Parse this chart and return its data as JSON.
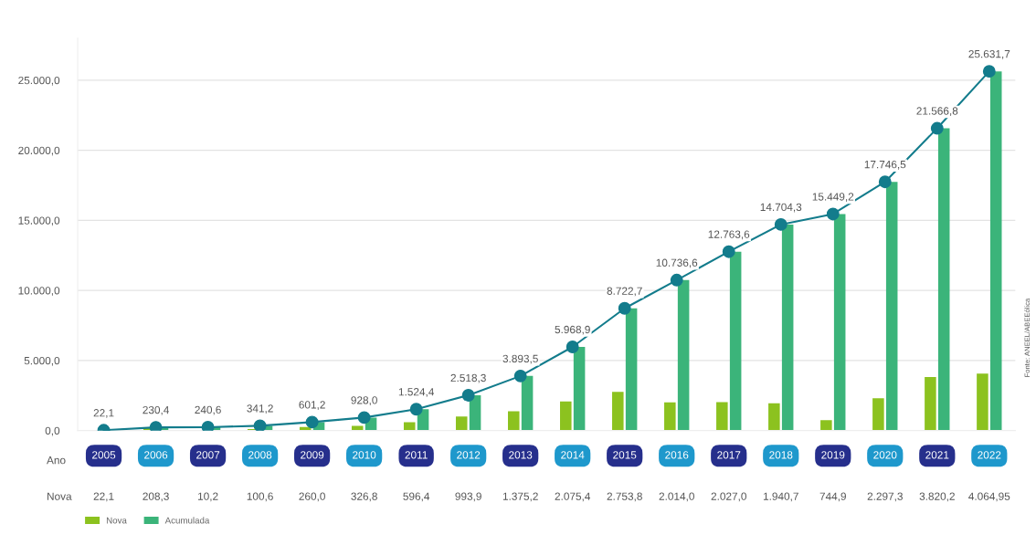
{
  "chart_data": {
    "type": "bar",
    "categories": [
      "2005",
      "2006",
      "2007",
      "2008",
      "2009",
      "2010",
      "2011",
      "2012",
      "2013",
      "2014",
      "2015",
      "2016",
      "2017",
      "2018",
      "2019",
      "2020",
      "2021",
      "2022"
    ],
    "series": [
      {
        "name": "Nova",
        "color": "#8cc21f",
        "values": [
          22.1,
          208.3,
          10.2,
          100.6,
          260.0,
          326.8,
          596.4,
          993.9,
          1375.2,
          2075.4,
          2753.8,
          2014.0,
          2027.0,
          1940.7,
          744.9,
          2297.3,
          3820.2,
          4064.95
        ],
        "value_labels": [
          "22,1",
          "208,3",
          "10,2",
          "100,6",
          "260,0",
          "326,8",
          "596,4",
          "993,9",
          "1.375,2",
          "2.075,4",
          "2.753,8",
          "2.014,0",
          "2.027,0",
          "1.940,7",
          "744,9",
          "2.297,3",
          "3.820,2",
          "4.064,95"
        ]
      },
      {
        "name": "Acumulada",
        "color": "#3bb47a",
        "values": [
          22.1,
          230.4,
          240.6,
          341.2,
          601.2,
          928.0,
          1524.4,
          2518.3,
          3893.5,
          5968.9,
          8722.7,
          10736.6,
          12763.6,
          14704.3,
          15449.2,
          17746.5,
          21566.8,
          25631.7
        ]
      },
      {
        "type": "line",
        "color": "#137c8c",
        "values": [
          22.1,
          230.4,
          240.6,
          341.2,
          601.2,
          928.0,
          1524.4,
          2518.3,
          3893.5,
          5968.9,
          8722.7,
          10736.6,
          12763.6,
          14704.3,
          15449.2,
          17746.5,
          21566.8,
          25631.7
        ],
        "value_labels": [
          "22,1",
          "230,4",
          "240,6",
          "341,2",
          "601,2",
          "928,0",
          "1.524,4",
          "2.518,3",
          "3.893,5",
          "5.968,9",
          "8.722,7",
          "10.736,6",
          "12.763,6",
          "14.704,3",
          "15.449,2",
          "17.746,5",
          "21.566,8",
          "25.631,7"
        ]
      }
    ],
    "ylim": [
      0,
      28000
    ],
    "yticks": [
      {
        "value": 0,
        "label": "0,0"
      },
      {
        "value": 5000,
        "label": "5.000,0"
      },
      {
        "value": 10000,
        "label": "10.000,0"
      },
      {
        "value": 15000,
        "label": "15.000,0"
      },
      {
        "value": 20000,
        "label": "20.000,0"
      },
      {
        "value": 25000,
        "label": "25.000,0"
      }
    ],
    "grid": "y",
    "legend": "bottom left",
    "marker": "circle",
    "annotations": [
      "Ano",
      "Nova",
      "Fonte: ANEEL/ABEEólica"
    ]
  }
}
